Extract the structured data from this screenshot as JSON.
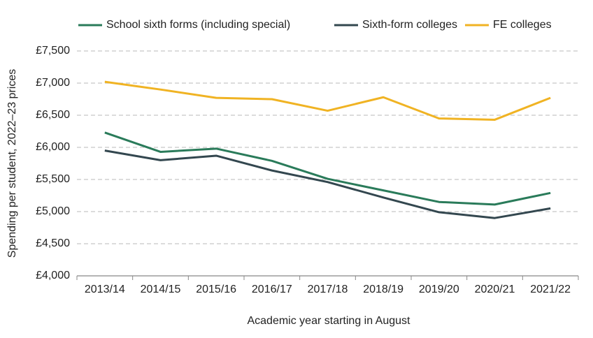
{
  "chart_data": {
    "type": "line",
    "x_label": "Academic year starting in August",
    "y_label": "Spending per student, 2022–23 prices",
    "categories": [
      "2013/14",
      "2014/15",
      "2015/16",
      "2016/17",
      "2017/18",
      "2018/19",
      "2019/20",
      "2020/21",
      "2021/22"
    ],
    "series": [
      {
        "name": "School sixth forms (including special)",
        "color": "#2a7b5a",
        "values": [
          6230,
          5930,
          5980,
          5790,
          5510,
          5330,
          5150,
          5110,
          5290
        ]
      },
      {
        "name": "Sixth-form colleges",
        "color": "#33474f",
        "values": [
          5950,
          5800,
          5870,
          5640,
          5460,
          5220,
          4990,
          4900,
          5050
        ]
      },
      {
        "name": "FE colleges",
        "color": "#f0b323",
        "values": [
          7020,
          6900,
          6770,
          6750,
          6570,
          6780,
          6450,
          6430,
          6770
        ]
      }
    ],
    "ylim": [
      4000,
      7500
    ],
    "yticks": [
      {
        "value": 4000,
        "label": "£4,000"
      },
      {
        "value": 4500,
        "label": "£4,500"
      },
      {
        "value": 5000,
        "label": "£5,000"
      },
      {
        "value": 5500,
        "label": "£5,500"
      },
      {
        "value": 6000,
        "label": "£6,000"
      },
      {
        "value": 6500,
        "label": "£6,500"
      },
      {
        "value": 7000,
        "label": "£7,000"
      },
      {
        "value": 7500,
        "label": "£7,500"
      }
    ],
    "grid": true,
    "legend": "top"
  }
}
